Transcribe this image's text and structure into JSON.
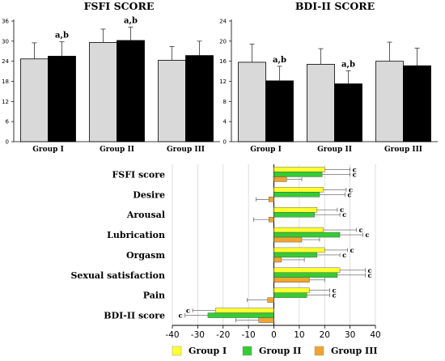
{
  "chart_data": [
    {
      "type": "bar",
      "title": "FSFI SCORE",
      "categories": [
        "Group I",
        "Group II",
        "Group III"
      ],
      "ylim": [
        0,
        36
      ],
      "yticks": [
        0,
        6,
        12,
        18,
        24,
        30,
        36
      ],
      "series": [
        {
          "values": [
            24.7,
            29.6,
            24.3
          ],
          "errors": [
            4.8,
            4.0,
            4.1
          ],
          "color": "#d9d9d9"
        },
        {
          "values": [
            25.5,
            30.2,
            25.7
          ],
          "errors": [
            4.3,
            4.0,
            4.3
          ],
          "color": "#000000"
        }
      ],
      "annotations": [
        {
          "category": "Group I",
          "series": 1,
          "text": "a,b"
        },
        {
          "category": "Group II",
          "series": 1,
          "text": "a,b"
        }
      ]
    },
    {
      "type": "bar",
      "title": "BDI-II SCORE",
      "categories": [
        "Group I",
        "Group II",
        "Group III"
      ],
      "ylim": [
        0,
        24
      ],
      "yticks": [
        0,
        4,
        8,
        12,
        16,
        20,
        24
      ],
      "series": [
        {
          "values": [
            15.8,
            15.4,
            16.0
          ],
          "errors": [
            3.6,
            3.1,
            3.8
          ],
          "color": "#d9d9d9"
        },
        {
          "values": [
            12.1,
            11.5,
            15.1
          ],
          "errors": [
            2.9,
            2.6,
            3.5
          ],
          "color": "#000000"
        }
      ],
      "annotations": [
        {
          "category": "Group I",
          "series": 1,
          "text": "a,b"
        },
        {
          "category": "Group II",
          "series": 1,
          "text": "a,b"
        }
      ]
    },
    {
      "type": "bar",
      "orientation": "horizontal",
      "categories": [
        "FSFI score",
        "Desire",
        "Arousal",
        "Lubrication",
        "Orgasm",
        "Sexual satisfaction",
        "Pain",
        "BDI-II score"
      ],
      "xlim": [
        -40,
        40
      ],
      "xticks": [
        -40,
        -30,
        -20,
        -10,
        0,
        10,
        20,
        30,
        40
      ],
      "grid": true,
      "legend_position": "bottom",
      "series": [
        {
          "name": "Group I",
          "color": "#ffff33",
          "values": [
            20,
            19.5,
            17,
            19.5,
            20,
            26,
            14,
            -23
          ],
          "errors": [
            10,
            9,
            8,
            13,
            9,
            10,
            8,
            9
          ],
          "marks": [
            "c",
            "c",
            "c",
            "c",
            "c",
            "c",
            "c",
            "c"
          ]
        },
        {
          "name": "Group II",
          "color": "#33cc33",
          "values": [
            19,
            18,
            16,
            26,
            17,
            25,
            13,
            -26
          ],
          "errors": [
            11,
            10,
            10,
            9,
            9,
            11,
            9,
            9
          ],
          "marks": [
            "c",
            "c",
            "c",
            "c",
            "c",
            "c",
            "c",
            "c"
          ]
        },
        {
          "name": "Group III",
          "color": "#f0a530",
          "values": [
            5,
            -2,
            -2,
            11,
            3,
            14,
            -2.5,
            -6
          ],
          "errors": [
            6,
            5,
            6,
            7,
            9,
            6,
            8,
            9
          ],
          "marks": [
            "",
            "",
            "",
            "",
            "",
            "",
            "",
            ""
          ]
        }
      ]
    }
  ]
}
